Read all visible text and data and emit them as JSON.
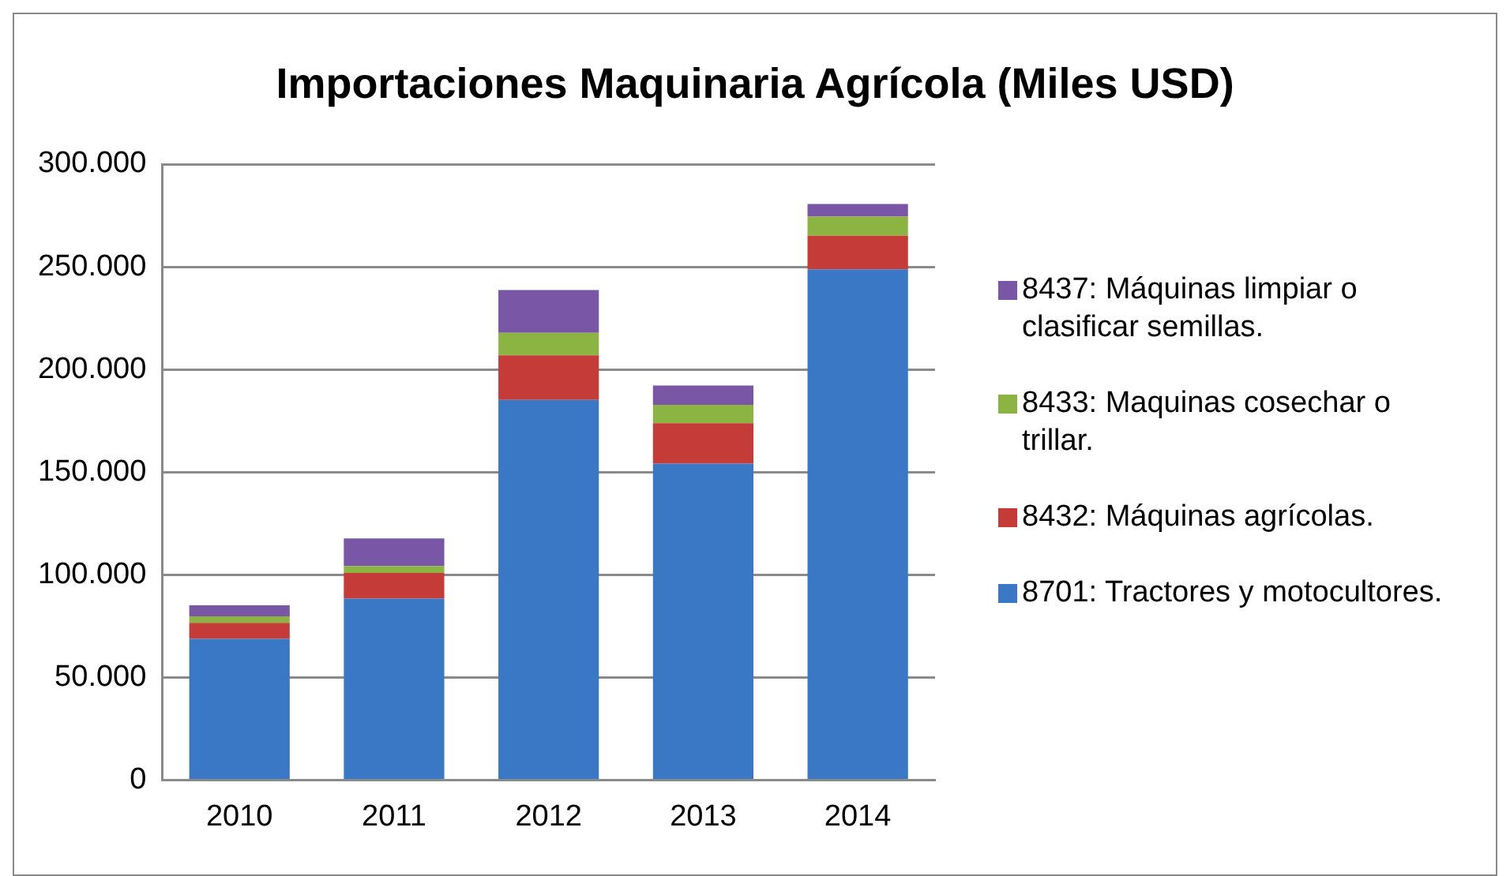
{
  "chart_data": {
    "type": "bar",
    "title": "Importaciones Maquinaria Agrícola (Miles USD)",
    "categories": [
      "2010",
      "2011",
      "2012",
      "2013",
      "2014"
    ],
    "series": [
      {
        "name": "8701: Tractores y motocultores.",
        "color": "#3a78c6",
        "values": [
          68800,
          88400,
          185200,
          154100,
          248800
        ]
      },
      {
        "name": "8432: Máquinas agrícolas.",
        "color": "#c53b38",
        "values": [
          7800,
          12500,
          21700,
          19700,
          16300
        ]
      },
      {
        "name": "8433: Maquinas cosechar o trillar.",
        "color": "#8cb443",
        "values": [
          3100,
          3300,
          10900,
          9000,
          9300
        ]
      },
      {
        "name": "8437: Máquinas limpiar o clasificar semillas.",
        "color": "#7a56a6",
        "values": [
          5400,
          13500,
          20900,
          9400,
          6200
        ]
      }
    ],
    "stacked": true,
    "ylim": [
      0,
      300000
    ],
    "yticks": [
      {
        "value": 0,
        "label": "0"
      },
      {
        "value": 50000,
        "label": "50.000"
      },
      {
        "value": 100000,
        "label": "100.000"
      },
      {
        "value": 150000,
        "label": "150.000"
      },
      {
        "value": 200000,
        "label": "200.000"
      },
      {
        "value": 250000,
        "label": "250.000"
      },
      {
        "value": 300000,
        "label": "300.000"
      }
    ],
    "grid": "y",
    "legend": "right"
  }
}
